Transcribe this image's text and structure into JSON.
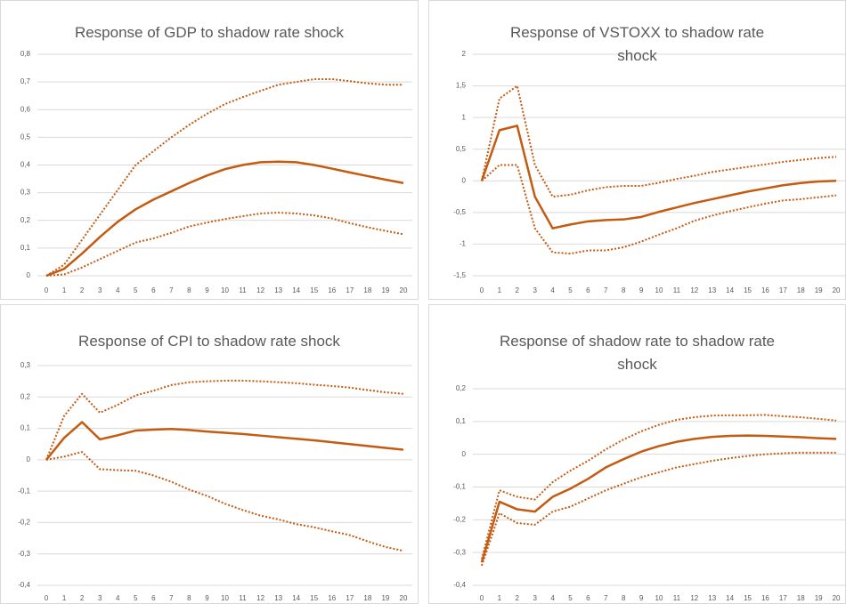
{
  "chart_data": [
    {
      "type": "line",
      "title": "Response of GDP to shadow rate shock",
      "categories": [
        "0",
        "1",
        "2",
        "3",
        "4",
        "5",
        "6",
        "7",
        "8",
        "9",
        "10",
        "11",
        "12",
        "13",
        "14",
        "15",
        "16",
        "17",
        "18",
        "19",
        "20"
      ],
      "ylim": [
        0,
        0.8
      ],
      "yticks": [
        0,
        {
          "value": 0.1,
          "label": "0,1"
        },
        {
          "value": 0.2,
          "label": "0,2"
        },
        {
          "value": 0.3,
          "label": "0,3"
        },
        {
          "value": 0.4,
          "label": "0,4"
        },
        {
          "value": 0.5,
          "label": "0,5"
        },
        {
          "value": 0.6,
          "label": "0,6"
        },
        {
          "value": 0.7,
          "label": "0,7"
        },
        {
          "value": 0.8,
          "label": "0,8"
        }
      ],
      "grid": true,
      "series": [
        {
          "color": "#c55a11",
          "dash": "solid",
          "values": [
            0,
            0.025,
            0.08,
            0.14,
            0.195,
            0.24,
            0.275,
            0.305,
            0.335,
            0.362,
            0.385,
            0.4,
            0.41,
            0.412,
            0.41,
            0.4,
            0.387,
            0.373,
            0.36,
            0.347,
            0.335
          ]
        },
        {
          "color": "#c55a11",
          "dash": "dotted",
          "values": [
            0,
            0.04,
            0.13,
            0.22,
            0.31,
            0.4,
            0.45,
            0.5,
            0.545,
            0.585,
            0.62,
            0.645,
            0.668,
            0.69,
            0.7,
            0.71,
            0.71,
            0.703,
            0.695,
            0.69,
            0.69
          ]
        },
        {
          "color": "#c55a11",
          "dash": "dotted",
          "values": [
            0,
            0.005,
            0.03,
            0.06,
            0.09,
            0.12,
            0.135,
            0.155,
            0.178,
            0.192,
            0.205,
            0.215,
            0.225,
            0.228,
            0.225,
            0.218,
            0.207,
            0.19,
            0.175,
            0.162,
            0.15
          ]
        }
      ]
    },
    {
      "type": "line",
      "title": "Response of VSTOXX to shadow rate shock",
      "categories": [
        "0",
        "1",
        "2",
        "3",
        "4",
        "5",
        "6",
        "7",
        "8",
        "9",
        "10",
        "11",
        "12",
        "13",
        "14",
        "15",
        "16",
        "17",
        "18",
        "19",
        "20"
      ],
      "ylim": [
        -1.5,
        2
      ],
      "yticks": [
        {
          "value": -1.5,
          "label": "-1,5"
        },
        -1,
        {
          "value": -0.5,
          "label": "-0,5"
        },
        0,
        {
          "value": 0.5,
          "label": "0,5"
        },
        1,
        {
          "value": 1.5,
          "label": "1,5"
        },
        2
      ],
      "grid": true,
      "series": [
        {
          "color": "#c55a11",
          "dash": "solid",
          "values": [
            0,
            0.8,
            0.87,
            -0.25,
            -0.75,
            -0.69,
            -0.64,
            -0.62,
            -0.61,
            -0.57,
            -0.49,
            -0.42,
            -0.35,
            -0.29,
            -0.23,
            -0.17,
            -0.12,
            -0.07,
            -0.035,
            -0.01,
            0
          ]
        },
        {
          "color": "#c55a11",
          "dash": "dotted",
          "values": [
            0,
            1.3,
            1.5,
            0.25,
            -0.25,
            -0.22,
            -0.15,
            -0.1,
            -0.08,
            -0.08,
            -0.03,
            0.03,
            0.08,
            0.14,
            0.18,
            0.22,
            0.26,
            0.3,
            0.33,
            0.36,
            0.38
          ]
        },
        {
          "color": "#c55a11",
          "dash": "dotted",
          "values": [
            0,
            0.25,
            0.25,
            -0.75,
            -1.13,
            -1.15,
            -1.1,
            -1.1,
            -1.05,
            -0.96,
            -0.85,
            -0.75,
            -0.63,
            -0.55,
            -0.48,
            -0.42,
            -0.36,
            -0.31,
            -0.29,
            -0.26,
            -0.23
          ]
        }
      ]
    },
    {
      "type": "line",
      "title": "Response of CPI to shadow rate shock",
      "categories": [
        "0",
        "1",
        "2",
        "3",
        "4",
        "5",
        "6",
        "7",
        "8",
        "9",
        "10",
        "11",
        "12",
        "13",
        "14",
        "15",
        "16",
        "17",
        "18",
        "19",
        "20"
      ],
      "ylim": [
        -0.4,
        0.3
      ],
      "yticks": [
        {
          "value": -0.4,
          "label": "-0,4"
        },
        {
          "value": -0.3,
          "label": "-0,3"
        },
        {
          "value": -0.2,
          "label": "-0,2"
        },
        {
          "value": -0.1,
          "label": "-0,1"
        },
        0,
        {
          "value": 0.1,
          "label": "0,1"
        },
        {
          "value": 0.2,
          "label": "0,2"
        },
        {
          "value": 0.3,
          "label": "0,3"
        }
      ],
      "grid": true,
      "series": [
        {
          "color": "#c55a11",
          "dash": "solid",
          "values": [
            0,
            0.07,
            0.12,
            0.065,
            0.078,
            0.093,
            0.096,
            0.098,
            0.095,
            0.09,
            0.086,
            0.082,
            0.077,
            0.072,
            0.067,
            0.062,
            0.056,
            0.05,
            0.044,
            0.038,
            0.032
          ]
        },
        {
          "color": "#c55a11",
          "dash": "dotted",
          "values": [
            0,
            0.14,
            0.21,
            0.15,
            0.175,
            0.205,
            0.22,
            0.238,
            0.247,
            0.25,
            0.252,
            0.252,
            0.25,
            0.247,
            0.244,
            0.239,
            0.235,
            0.23,
            0.222,
            0.215,
            0.21
          ]
        },
        {
          "color": "#c55a11",
          "dash": "dotted",
          "values": [
            0,
            0.01,
            0.025,
            -0.03,
            -0.033,
            -0.035,
            -0.05,
            -0.07,
            -0.095,
            -0.115,
            -0.14,
            -0.16,
            -0.178,
            -0.19,
            -0.205,
            -0.215,
            -0.228,
            -0.24,
            -0.26,
            -0.278,
            -0.29
          ]
        }
      ]
    },
    {
      "type": "line",
      "title": "Response of shadow rate to shadow rate shock",
      "categories": [
        "0",
        "1",
        "2",
        "3",
        "4",
        "5",
        "6",
        "7",
        "8",
        "9",
        "10",
        "11",
        "12",
        "13",
        "14",
        "15",
        "16",
        "17",
        "18",
        "19",
        "20"
      ],
      "ylim": [
        -0.4,
        0.2
      ],
      "yticks": [
        {
          "value": -0.4,
          "label": "-0,4"
        },
        {
          "value": -0.3,
          "label": "-0,3"
        },
        {
          "value": -0.2,
          "label": "-0,2"
        },
        {
          "value": -0.1,
          "label": "-0,1"
        },
        0,
        {
          "value": 0.1,
          "label": "0,1"
        },
        {
          "value": 0.2,
          "label": "0,2"
        }
      ],
      "grid": true,
      "series": [
        {
          "color": "#c55a11",
          "dash": "solid",
          "values": [
            -0.33,
            -0.145,
            -0.168,
            -0.175,
            -0.13,
            -0.105,
            -0.075,
            -0.04,
            -0.015,
            0.008,
            0.025,
            0.038,
            0.047,
            0.053,
            0.056,
            0.057,
            0.056,
            0.054,
            0.052,
            0.049,
            0.047
          ]
        },
        {
          "color": "#c55a11",
          "dash": "dotted",
          "values": [
            -0.32,
            -0.11,
            -0.13,
            -0.138,
            -0.085,
            -0.05,
            -0.02,
            0.015,
            0.045,
            0.07,
            0.09,
            0.105,
            0.113,
            0.118,
            0.119,
            0.119,
            0.12,
            0.116,
            0.113,
            0.108,
            0.103
          ]
        },
        {
          "color": "#c55a11",
          "dash": "dotted",
          "values": [
            -0.34,
            -0.18,
            -0.21,
            -0.215,
            -0.175,
            -0.16,
            -0.135,
            -0.11,
            -0.09,
            -0.07,
            -0.055,
            -0.04,
            -0.03,
            -0.02,
            -0.012,
            -0.005,
            0,
            0.003,
            0.005,
            0.005,
            0.005
          ]
        }
      ]
    }
  ]
}
